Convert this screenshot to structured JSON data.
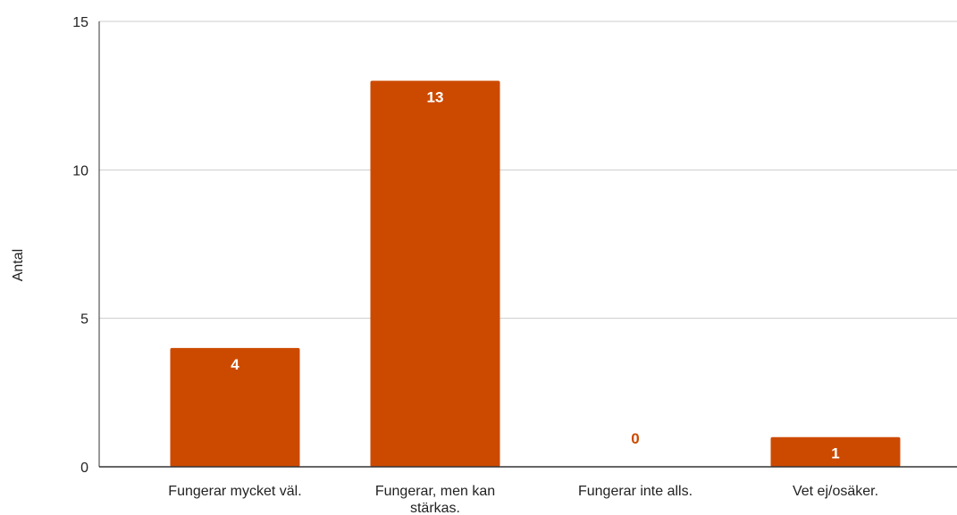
{
  "chart_data": {
    "type": "bar",
    "categories": [
      "Fungerar mycket väl.",
      "Fungerar, men kan stärkas.",
      "Fungerar inte alls.",
      "Vet ej/osäker."
    ],
    "category_lines": [
      [
        "Fungerar mycket väl."
      ],
      [
        "Fungerar, men kan",
        "stärkas."
      ],
      [
        "Fungerar inte alls."
      ],
      [
        "Vet ej/osäker."
      ]
    ],
    "values": [
      4,
      13,
      0,
      1
    ],
    "ylabel": "Antal",
    "xlabel": "",
    "ylim": [
      0,
      15
    ],
    "yticks": [
      0,
      5,
      10,
      15
    ],
    "grid": true,
    "legend": "none",
    "colors": {
      "bar": "#cc4a00",
      "label_inside": "#ffffff",
      "label_outside": "#cc4a00",
      "grid": "#cccccc",
      "axis": "#333333"
    }
  }
}
